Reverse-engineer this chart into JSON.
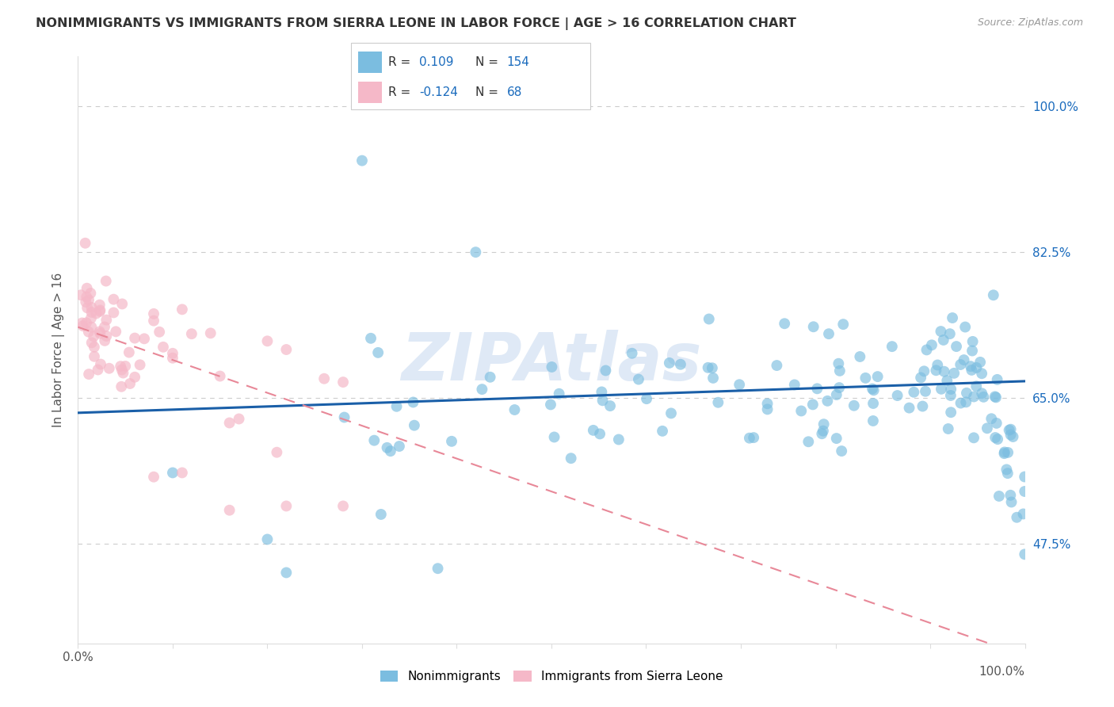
{
  "title": "NONIMMIGRANTS VS IMMIGRANTS FROM SIERRA LEONE IN LABOR FORCE | AGE > 16 CORRELATION CHART",
  "source": "Source: ZipAtlas.com",
  "ylabel": "In Labor Force | Age > 16",
  "ytick_labels": [
    "100.0%",
    "82.5%",
    "65.0%",
    "47.5%"
  ],
  "ytick_values": [
    1.0,
    0.825,
    0.65,
    0.475
  ],
  "xlim": [
    0.0,
    1.0
  ],
  "ylim": [
    0.355,
    1.06
  ],
  "blue_color": "#7bbde0",
  "pink_color": "#f5b8c8",
  "blue_line_color": "#1a5fa8",
  "pink_line_color": "#e88898",
  "text_color": "#1a6bbd",
  "grid_color": "#cccccc",
  "R_blue": 0.109,
  "N_blue": 154,
  "R_pink": -0.124,
  "N_pink": 68,
  "legend_label_blue": "Nonimmigrants",
  "legend_label_pink": "Immigrants from Sierra Leone",
  "watermark": "ZIPAtlas",
  "blue_trend_intercept": 0.632,
  "blue_trend_slope": 0.038,
  "pink_trend_intercept": 0.735,
  "pink_trend_slope": -0.395
}
